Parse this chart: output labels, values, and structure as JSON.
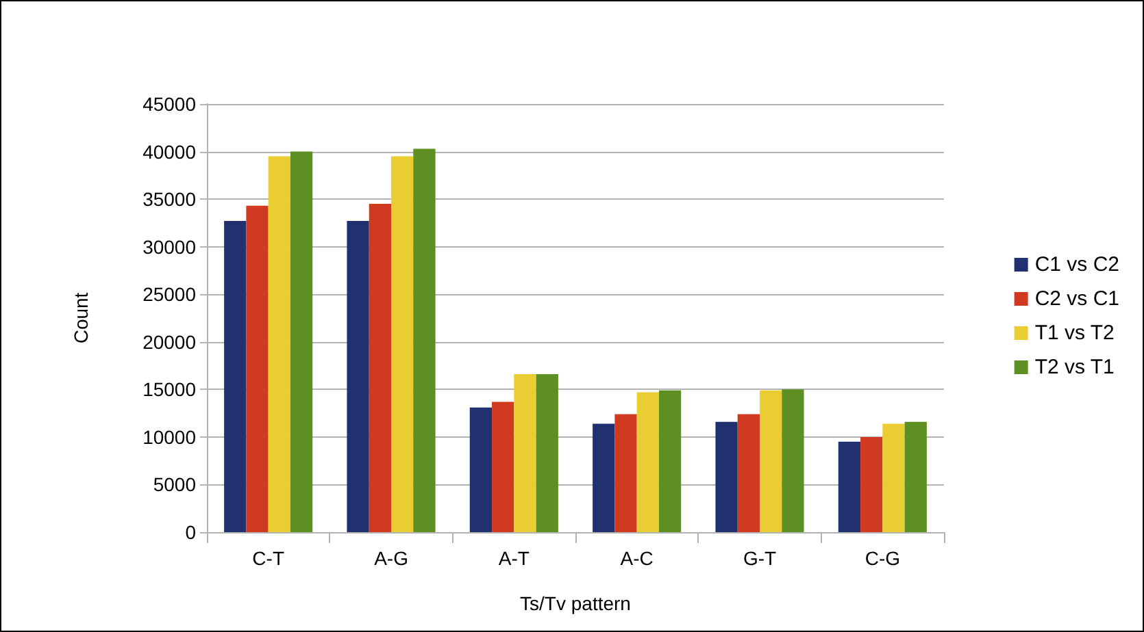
{
  "chart_data": {
    "type": "bar",
    "xlabel": "Ts/Tv pattern",
    "ylabel": "Count",
    "categories": [
      "C-T",
      "A-G",
      "A-T",
      "A-C",
      "G-T",
      "C-G"
    ],
    "series": [
      {
        "name": "C1 vs C2",
        "color": "#21316f",
        "values": [
          32700,
          32700,
          13100,
          11400,
          11600,
          9500
        ]
      },
      {
        "name": "C2 vs C1",
        "color": "#d03a21",
        "values": [
          34300,
          34500,
          13700,
          12400,
          12400,
          10000
        ]
      },
      {
        "name": "T1 vs T2",
        "color": "#eacd32",
        "values": [
          39500,
          39500,
          16600,
          14700,
          14900,
          11400
        ]
      },
      {
        "name": "T2 vs T1",
        "color": "#5e8f22",
        "values": [
          40000,
          40300,
          16600,
          14900,
          15000,
          11600
        ]
      }
    ],
    "ylim": [
      0,
      45000
    ],
    "yticks": [
      0,
      5000,
      10000,
      15000,
      20000,
      25000,
      30000,
      35000,
      40000,
      45000
    ],
    "grid": "y",
    "legend": "right"
  }
}
